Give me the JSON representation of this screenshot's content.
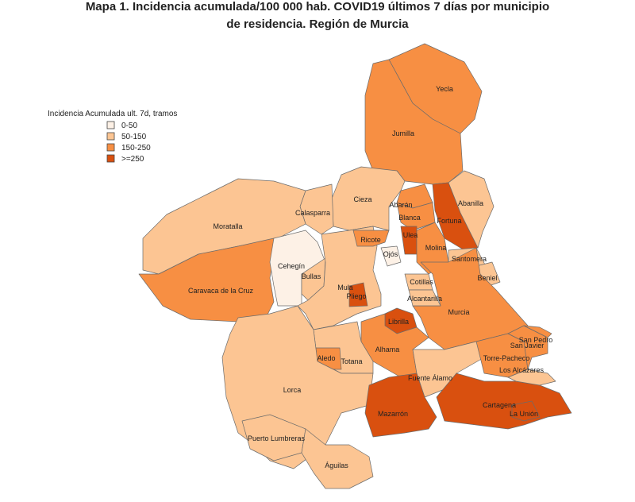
{
  "title": [
    "Mapa 1. Incidencia acumulada/100 000 hab. COVID19 últimos 7 días por municipio",
    "de residencia. Región de Murcia"
  ],
  "legend": {
    "title": "Incidencia Acumulada ult. 7d, tramos",
    "items": [
      {
        "label": "0-50",
        "color": "#fdf1e6"
      },
      {
        "label": "50-150",
        "color": "#fcc593"
      },
      {
        "label": "150-250",
        "color": "#f78f43"
      },
      {
        "label": ">=250",
        "color": "#d9500f"
      }
    ]
  },
  "municipalities": [
    {
      "name": "Yecla",
      "color": "#f78f43"
    },
    {
      "name": "Jumilla",
      "color": "#f78f43"
    },
    {
      "name": "Abanilla",
      "color": "#fcc593"
    },
    {
      "name": "Fortuna",
      "color": "#d9500f"
    },
    {
      "name": "Cieza",
      "color": "#fcc593"
    },
    {
      "name": "Calasparra",
      "color": "#fcc593"
    },
    {
      "name": "Moratalla",
      "color": "#fcc593"
    },
    {
      "name": "Caravaca de la Cruz",
      "color": "#f78f43"
    },
    {
      "name": "Cehegín",
      "color": "#fdf1e6"
    },
    {
      "name": "Bullas",
      "color": "#fcc593"
    },
    {
      "name": "Mula",
      "color": "#fcc593"
    },
    {
      "name": "Pliego",
      "color": "#d9500f"
    },
    {
      "name": "Ricote",
      "color": "#f78f43"
    },
    {
      "name": "Abarán",
      "color": "#f78f43"
    },
    {
      "name": "Blanca",
      "color": "#f78f43"
    },
    {
      "name": "Ulea",
      "color": "#d9500f"
    },
    {
      "name": "Ojós",
      "color": "#fdf1e6"
    },
    {
      "name": "Molina",
      "color": "#f78f43"
    },
    {
      "name": "Santomera",
      "color": "#fcc593"
    },
    {
      "name": "Beniel",
      "color": "#fcc593"
    },
    {
      "name": "Murcia",
      "color": "#f78f43"
    },
    {
      "name": "Cotillas",
      "color": "#fcc593"
    },
    {
      "name": "Alcantarilla",
      "color": "#fcc593"
    },
    {
      "name": "Librilla",
      "color": "#d9500f"
    },
    {
      "name": "Alhama",
      "color": "#f78f43"
    },
    {
      "name": "Totana",
      "color": "#fcc593"
    },
    {
      "name": "Aledo",
      "color": "#f78f43"
    },
    {
      "name": "Lorca",
      "color": "#fcc593"
    },
    {
      "name": "Puerto Lumbreras",
      "color": "#fcc593"
    },
    {
      "name": "Águilas",
      "color": "#fcc593"
    },
    {
      "name": "Fuente Álamo",
      "color": "#fcc593"
    },
    {
      "name": "Mazarrón",
      "color": "#d9500f"
    },
    {
      "name": "Cartagena",
      "color": "#d9500f"
    },
    {
      "name": "La Unión",
      "color": "#d9500f"
    },
    {
      "name": "Torre-Pacheco",
      "color": "#f78f43"
    },
    {
      "name": "Los Alcázares",
      "color": "#fcc593"
    },
    {
      "name": "San Javier",
      "color": "#f78f43"
    },
    {
      "name": "San Pedro",
      "color": "#f78f43"
    }
  ]
}
